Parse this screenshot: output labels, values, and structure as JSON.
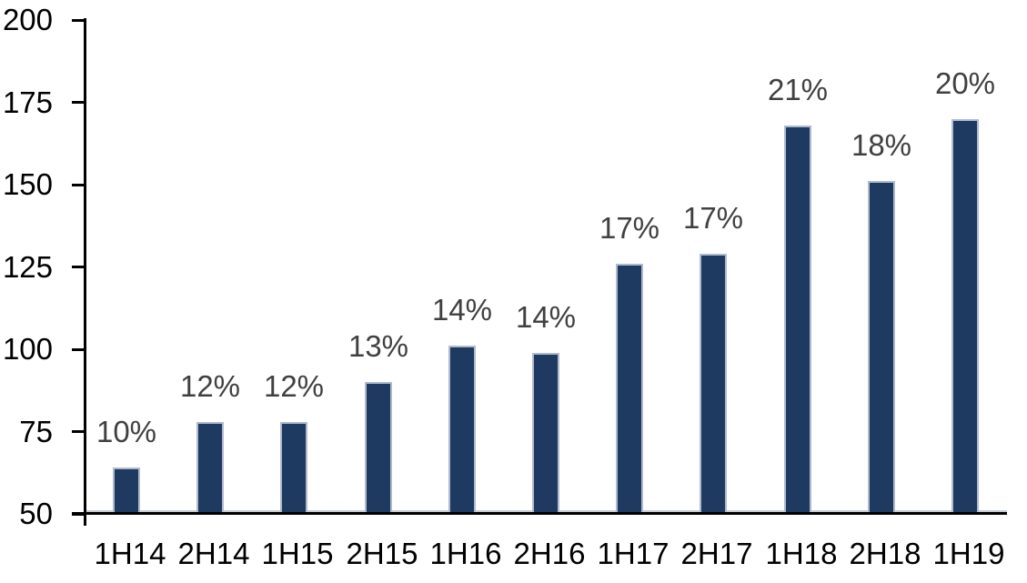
{
  "chart_data": {
    "type": "bar",
    "title": "",
    "xlabel": "",
    "ylabel": "",
    "categories": [
      "1H14",
      "2H14",
      "1H15",
      "2H15",
      "1H16",
      "2H16",
      "1H17",
      "2H17",
      "1H18",
      "2H18",
      "1H19"
    ],
    "values": [
      64,
      78,
      78,
      90,
      101,
      99,
      126,
      129,
      168,
      151,
      170
    ],
    "data_labels": [
      "10%",
      "12%",
      "12%",
      "13%",
      "14%",
      "14%",
      "17%",
      "17%",
      "21%",
      "18%",
      "20%"
    ],
    "ylim": [
      50,
      200
    ],
    "yticks": [
      50,
      75,
      100,
      125,
      150,
      175,
      200
    ],
    "grid": false,
    "legend": null,
    "colors": {
      "bar_fill": "#1F3A60",
      "bar_border": "#AFBBCC",
      "data_label": "#404040",
      "axis": "#000000",
      "baseline_highlight": "#C6CCD4",
      "background": "#FFFFFF"
    }
  }
}
